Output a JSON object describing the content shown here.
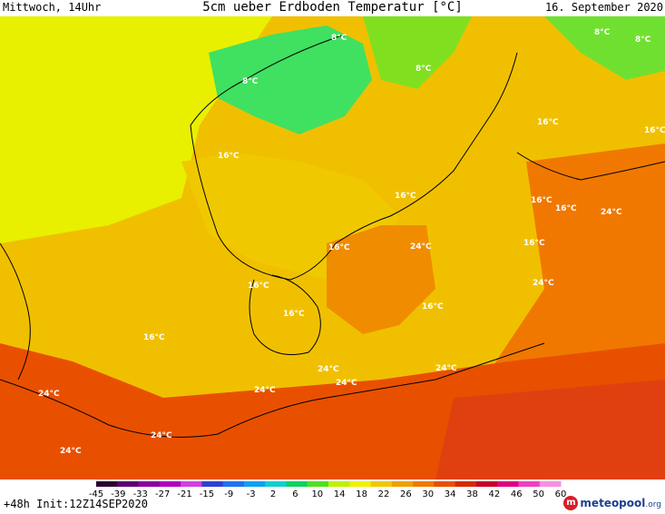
{
  "header": {
    "left": "Mittwoch, 14Uhr",
    "title": "5cm ueber Erdboden Temperatur [°C]",
    "right": "16. September 2020"
  },
  "footer": {
    "run": "+48h Init:12Z14SEP2020",
    "logo_text": "meteopool",
    "logo_tld": ".org",
    "logo_icon_name": "meteopool-logo-icon"
  },
  "scale": {
    "ticks": [
      "-45",
      "-39",
      "-33",
      "-27",
      "-21",
      "-15",
      "-9",
      "-3",
      "2",
      "6",
      "10",
      "14",
      "18",
      "22",
      "26",
      "30",
      "34",
      "38",
      "42",
      "46",
      "50",
      "60"
    ],
    "colors": [
      "#2a0030",
      "#5a0070",
      "#8a00a0",
      "#b000c0",
      "#d040e0",
      "#3040d0",
      "#2070f0",
      "#10a0f0",
      "#10d0d0",
      "#10d060",
      "#50e020",
      "#c0f000",
      "#f0f000",
      "#f0c800",
      "#f0a000",
      "#f07800",
      "#e85000",
      "#d82800",
      "#c80028",
      "#e00080",
      "#f040c0",
      "#f890e0"
    ]
  },
  "map": {
    "colors": {
      "sea": "#f0b000",
      "cold": "#e8f000",
      "mid": "#f0c800",
      "warm": "#f08000",
      "hot": "#e85000",
      "coolgreen": "#40e040",
      "green": "#90e020"
    },
    "labels": [
      "8°C",
      "8°C",
      "8°C",
      "8°C",
      "8°C",
      "16°C",
      "16°C",
      "16°C",
      "16°C",
      "16°C",
      "16°C",
      "16°C",
      "16°C",
      "16°C",
      "16°C",
      "16°C",
      "16°C",
      "24°C",
      "24°C",
      "24°C",
      "24°C",
      "24°C",
      "24°C",
      "24°C",
      "24°C",
      "24°C",
      "24°C"
    ]
  }
}
